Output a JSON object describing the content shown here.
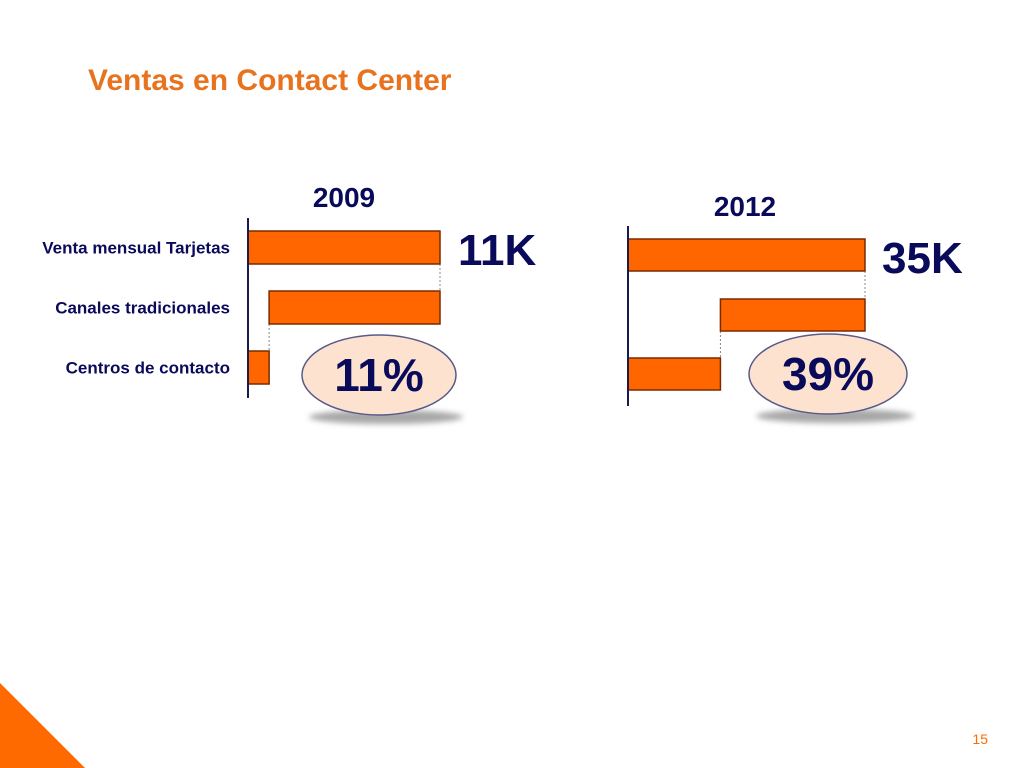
{
  "slide": {
    "title": "Ventas en Contact Center",
    "page_number": "15"
  },
  "colors": {
    "title": "#e8731f",
    "bar_fill": "#ff6600",
    "bar_stroke": "#7a2a00",
    "axis": "#1a1a4d",
    "dark_text": "#0a0a5a",
    "ellipse_fill": "#fde3cf",
    "ellipse_stroke": "#5a5a8a"
  },
  "chart_data": [
    {
      "type": "bar",
      "orientation": "waterfall-horizontal",
      "title": "2009",
      "categories": [
        "Venta mensual Tarjetas",
        "Canales tradicionales",
        "Centros de contacto"
      ],
      "bars": [
        {
          "start": 0,
          "end": 100
        },
        {
          "start": 11,
          "end": 100
        },
        {
          "start": 0,
          "end": 11
        }
      ],
      "xlim": [
        0,
        100
      ],
      "total_label": "11K",
      "share_label": "11%"
    },
    {
      "type": "bar",
      "orientation": "waterfall-horizontal",
      "title": "2012",
      "categories": [
        "Venta mensual Tarjetas",
        "Canales tradicionales",
        "Centros de contacto"
      ],
      "bars": [
        {
          "start": 0,
          "end": 100
        },
        {
          "start": 39,
          "end": 100
        },
        {
          "start": 0,
          "end": 39
        }
      ],
      "xlim": [
        0,
        100
      ],
      "total_label": "35K",
      "share_label": "39%"
    }
  ]
}
